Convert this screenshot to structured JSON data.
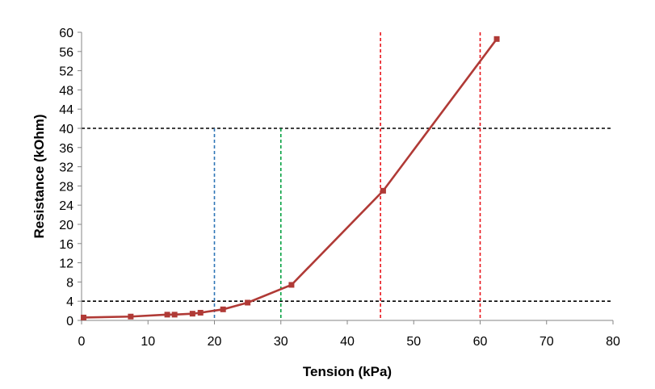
{
  "chart_data": {
    "type": "line",
    "title": "",
    "xlabel": "Tension (kPa)",
    "ylabel": "Resistance (kOhm)",
    "xlim": [
      0,
      80
    ],
    "ylim": [
      0,
      60
    ],
    "x_ticks": [
      0,
      10,
      20,
      30,
      40,
      50,
      60,
      70,
      80
    ],
    "y_ticks": [
      0,
      4,
      8,
      12,
      16,
      20,
      24,
      28,
      32,
      36,
      40,
      44,
      48,
      52,
      56,
      60
    ],
    "grid": false,
    "legend": "none",
    "series": [
      {
        "color": "#b03a36",
        "marker": "square",
        "points": [
          {
            "x": 0.3,
            "y": 0.6
          },
          {
            "x": 7.4,
            "y": 0.8
          },
          {
            "x": 12.9,
            "y": 1.2
          },
          {
            "x": 14,
            "y": 1.2
          },
          {
            "x": 16.7,
            "y": 1.4
          },
          {
            "x": 17.9,
            "y": 1.6
          },
          {
            "x": 21.3,
            "y": 2.3
          },
          {
            "x": 25,
            "y": 3.7
          },
          {
            "x": 31.6,
            "y": 7.4
          },
          {
            "x": 45.4,
            "y": 27
          },
          {
            "x": 62.5,
            "y": 58.6
          }
        ]
      }
    ],
    "reference_lines": [
      {
        "orientation": "horizontal",
        "value": 40,
        "color": "#000000",
        "style": "dashed"
      },
      {
        "orientation": "horizontal",
        "value": 4,
        "color": "#000000",
        "style": "dashed"
      },
      {
        "orientation": "vertical",
        "value": 20,
        "ymax": 40,
        "color": "#2e75b6",
        "style": "dashed"
      },
      {
        "orientation": "vertical",
        "value": 30,
        "ymax": 40,
        "color": "#00a040",
        "style": "dashed"
      },
      {
        "orientation": "vertical",
        "value": 45,
        "ymax": 60,
        "color": "#e8141b",
        "style": "dashed"
      },
      {
        "orientation": "vertical",
        "value": 60,
        "ymax": 60,
        "color": "#e8141b",
        "style": "dashed"
      }
    ]
  }
}
